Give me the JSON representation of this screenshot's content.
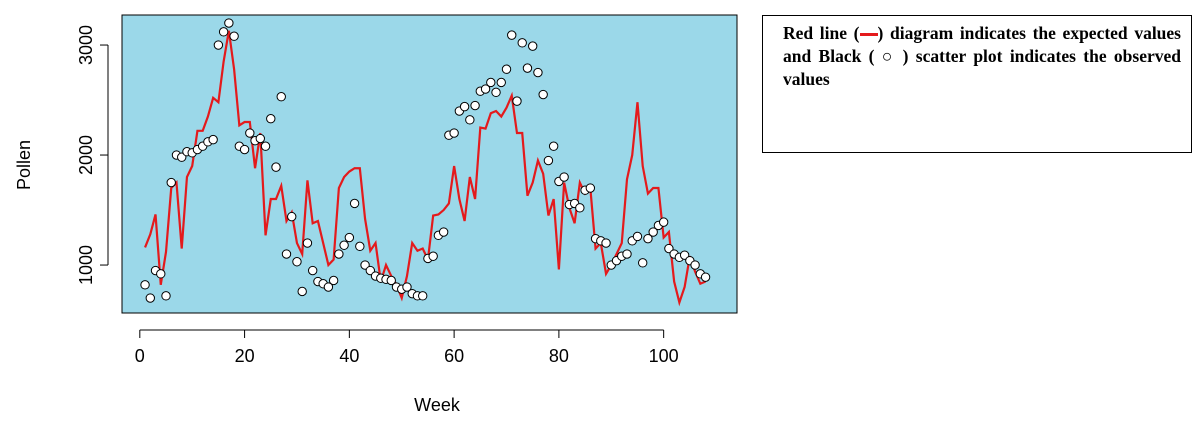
{
  "chart_data": {
    "type": "line",
    "x_label": "Week",
    "y_label": "Pollen",
    "x": [
      1,
      2,
      3,
      4,
      5,
      6,
      7,
      8,
      9,
      10,
      11,
      12,
      13,
      14,
      15,
      16,
      17,
      18,
      19,
      20,
      21,
      22,
      23,
      24,
      25,
      26,
      27,
      28,
      29,
      30,
      31,
      32,
      33,
      34,
      35,
      36,
      37,
      38,
      39,
      40,
      41,
      42,
      43,
      44,
      45,
      46,
      47,
      48,
      49,
      50,
      51,
      52,
      53,
      54,
      55,
      56,
      57,
      58,
      59,
      60,
      61,
      62,
      63,
      64,
      65,
      66,
      67,
      68,
      69,
      70,
      71,
      72,
      73,
      74,
      75,
      76,
      77,
      78,
      79,
      80,
      81,
      82,
      83,
      84,
      85,
      86,
      87,
      88,
      89,
      90,
      91,
      92,
      93,
      94,
      95,
      96,
      97,
      98,
      99,
      100,
      101,
      102,
      103,
      104,
      105,
      106,
      107,
      108
    ],
    "series": [
      {
        "mode": "lines",
        "color": "#e41a1c",
        "values": [
          1160,
          1280,
          1460,
          820,
          1120,
          1700,
          1750,
          1150,
          1800,
          1900,
          2220,
          2220,
          2350,
          2520,
          2480,
          2850,
          3130,
          2780,
          2270,
          2300,
          2300,
          1880,
          2200,
          1270,
          1600,
          1600,
          1720,
          1400,
          1480,
          1200,
          1100,
          1770,
          1380,
          1400,
          1200,
          1000,
          1050,
          1700,
          1800,
          1850,
          1880,
          1880,
          1420,
          1130,
          1200,
          850,
          1000,
          900,
          820,
          700,
          900,
          1200,
          1130,
          1150,
          1050,
          1450,
          1460,
          1500,
          1560,
          1900,
          1600,
          1400,
          1800,
          1600,
          2250,
          2240,
          2380,
          2400,
          2350,
          2430,
          2540,
          2200,
          2200,
          1630,
          1750,
          1950,
          1830,
          1450,
          1600,
          960,
          1750,
          1520,
          1380,
          1750,
          1650,
          1700,
          1150,
          1200,
          920,
          1000,
          1100,
          1200,
          1780,
          2000,
          2480,
          1900,
          1650,
          1700,
          1700,
          1250,
          1300,
          850,
          660,
          800,
          1080,
          940,
          830,
          850
        ]
      },
      {
        "mode": "points",
        "color": "#000000",
        "values": [
          820,
          700,
          950,
          920,
          720,
          1750,
          2000,
          1980,
          2030,
          2020,
          2050,
          2080,
          2120,
          2140,
          3000,
          3120,
          3200,
          3080,
          2080,
          2050,
          2200,
          2130,
          2150,
          2080,
          2330,
          1890,
          2530,
          1100,
          1440,
          1030,
          760,
          1200,
          950,
          850,
          830,
          800,
          860,
          1100,
          1180,
          1250,
          1560,
          1170,
          1000,
          950,
          900,
          880,
          870,
          860,
          800,
          780,
          800,
          740,
          720,
          720,
          1060,
          1080,
          1270,
          1300,
          2180,
          2200,
          2400,
          2440,
          2320,
          2450,
          2580,
          2600,
          2660,
          2570,
          2660,
          2780,
          3090,
          2490,
          3020,
          2790,
          2990,
          2750,
          2550,
          1950,
          2080,
          1760,
          1800,
          1550,
          1560,
          1520,
          1680,
          1700,
          1240,
          1220,
          1200,
          1000,
          1040,
          1080,
          1100,
          1220,
          1260,
          1020,
          1240,
          1300,
          1360,
          1390,
          1150,
          1100,
          1070,
          1090,
          1040,
          1000,
          920,
          890
        ]
      }
    ],
    "xlim": [
      -3.4,
      114
    ],
    "ylim": [
      564,
      3273
    ],
    "xticks": [
      0,
      20,
      40,
      60,
      80,
      100
    ],
    "yticks": [
      1000,
      2000,
      3000
    ],
    "background": "#9bd8e9",
    "note": [
      "Red line (",
      ") diagram indicates the expected values and Black ( ○ ) scatter plot indicates the observed values"
    ]
  }
}
